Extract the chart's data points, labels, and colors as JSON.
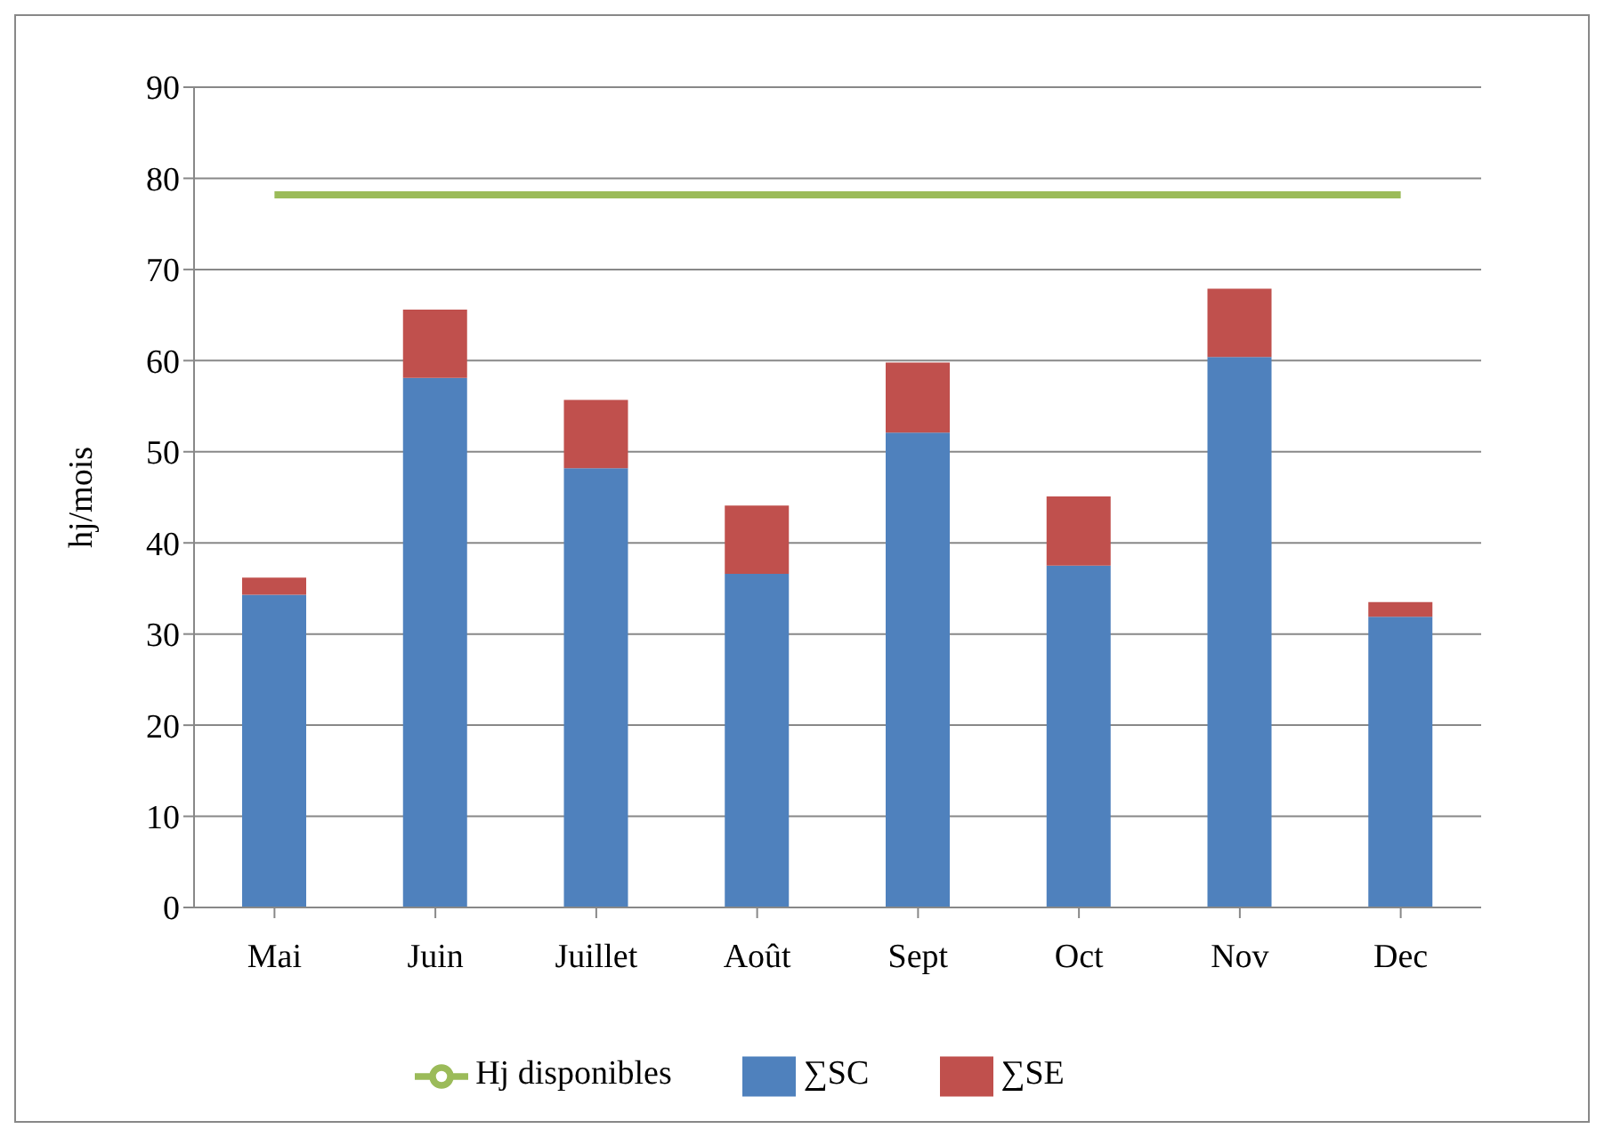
{
  "chart_data": {
    "type": "bar",
    "stacked": true,
    "ylabel": "hj/mois",
    "categories": [
      "Mai",
      "Juin",
      "Juillet",
      "Août",
      "Sept",
      "Oct",
      "Nov",
      "Dec"
    ],
    "series": [
      {
        "name": "∑SC",
        "color": "#4f81bd",
        "values": [
          34.3,
          58.1,
          48.2,
          36.6,
          52.1,
          37.5,
          60.4,
          31.9
        ]
      },
      {
        "name": "∑SE",
        "color": "#c0504d",
        "values": [
          1.9,
          7.5,
          7.5,
          7.5,
          7.7,
          7.6,
          7.5,
          1.6
        ]
      },
      {
        "name": "Hj disponibles",
        "type": "line",
        "color": "#9bbb59",
        "values": [
          78.2,
          78.2,
          78.2,
          78.2,
          78.2,
          78.2,
          78.2,
          78.2
        ]
      }
    ],
    "ylim": [
      0,
      90
    ],
    "yticks": [
      0,
      10,
      20,
      30,
      40,
      50,
      60,
      70,
      80,
      90
    ],
    "grid": "y",
    "legend": "bottom",
    "marker": "none"
  }
}
